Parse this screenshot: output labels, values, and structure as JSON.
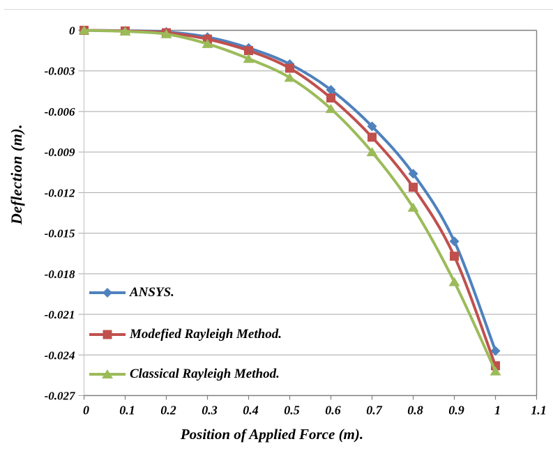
{
  "page": {
    "background": "#ffffff",
    "top_rule_color": "#d9d9d9"
  },
  "chart_data": {
    "type": "line",
    "title": "",
    "xlabel": "Position of Applied Force (m).",
    "ylabel": "Deflection (m).",
    "x": [
      0,
      0.1,
      0.2,
      0.3,
      0.4,
      0.5,
      0.6,
      0.7,
      0.8,
      0.9,
      1
    ],
    "x_ticks": [
      "0",
      "0.1",
      "0.2",
      "0.3",
      "0.4",
      "0.5",
      "0.6",
      "0.7",
      "0.8",
      "0.9",
      "1",
      "1.1"
    ],
    "x_tick_values": [
      0,
      0.1,
      0.2,
      0.3,
      0.4,
      0.5,
      0.6,
      0.7,
      0.8,
      0.9,
      1,
      1.1
    ],
    "y_ticks": [
      "0",
      "-0.003",
      "-0.006",
      "-0.009",
      "-0.012",
      "-0.015",
      "-0.018",
      "-0.021",
      "-0.024",
      "-0.027"
    ],
    "y_tick_values": [
      0,
      -0.003,
      -0.006,
      -0.009,
      -0.012,
      -0.015,
      -0.018,
      -0.021,
      -0.024,
      -0.027
    ],
    "xlim": [
      0,
      1.1
    ],
    "ylim": [
      -0.027,
      0
    ],
    "grid": "horizontal",
    "legend_position": "inside-bottom-left",
    "layout_hints": {
      "grid_color": "#a6a6a6",
      "frame_color": "#7f7f7f",
      "axis_color": "#c6c6c6",
      "line_width": 4,
      "marker_size": 14
    },
    "series": [
      {
        "name": "ANSYS.",
        "color": "#4F81BD",
        "marker": "diamond",
        "values": [
          0,
          -3e-05,
          -0.00012,
          -0.0005,
          -0.0013,
          -0.0025,
          -0.0044,
          -0.0071,
          -0.0106,
          -0.0156,
          -0.0237
        ]
      },
      {
        "name": "Modefied Rayleigh Method.",
        "color": "#C0504D",
        "marker": "square",
        "values": [
          0,
          -5e-05,
          -0.00018,
          -0.00065,
          -0.0015,
          -0.0028,
          -0.005,
          -0.0079,
          -0.0116,
          -0.0167,
          -0.0248
        ]
      },
      {
        "name": "Classical Rayleigh Method.",
        "color": "#9BBB59",
        "marker": "triangle",
        "values": [
          0,
          -8e-05,
          -0.00028,
          -0.001,
          -0.0021,
          -0.0035,
          -0.0058,
          -0.009,
          -0.0131,
          -0.0186,
          -0.0252
        ]
      }
    ]
  }
}
